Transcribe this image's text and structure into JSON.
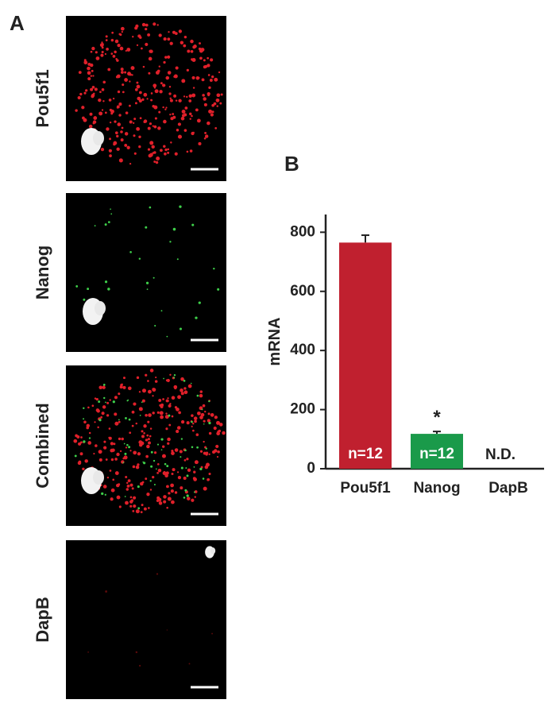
{
  "panel_a": {
    "label": "A",
    "images": [
      "Pou5f1",
      "Nanog",
      "Combined",
      "DapB"
    ]
  },
  "chart_data": {
    "type": "bar",
    "panel_label": "B",
    "y_label": "mRNA",
    "categories": [
      "Pou5f1",
      "Nanog",
      "DapB"
    ],
    "values": [
      765,
      118,
      null
    ],
    "errors": [
      25,
      8,
      null
    ],
    "colors": [
      "#c0202f",
      "#1a9a4a",
      null
    ],
    "bar_labels": [
      "n=12",
      "n=12",
      null
    ],
    "significance": [
      null,
      "*",
      null
    ],
    "not_detected": [
      null,
      null,
      "N.D."
    ],
    "ylim": [
      0,
      860
    ],
    "yticks": [
      0,
      200,
      400,
      600,
      800
    ]
  }
}
